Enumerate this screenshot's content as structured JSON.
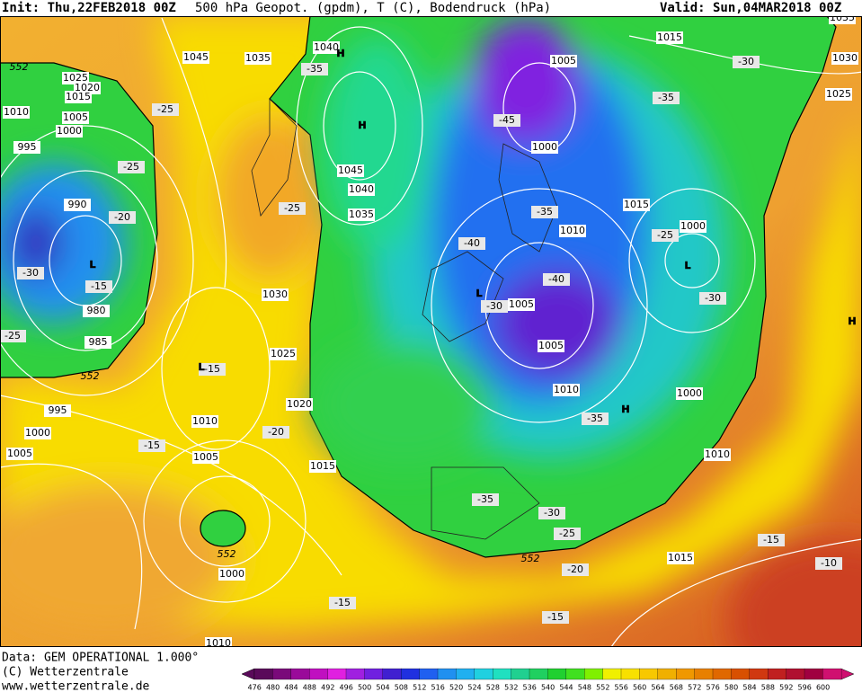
{
  "header": {
    "init": "Init: Thu,22FEB2018 00Z",
    "title": "500 hPa Geopot. (gpdm), T (C), Bodendruck (hPa)",
    "valid": "Valid: Sun,04MAR2018 00Z"
  },
  "map": {
    "isobar_labels": [
      "1040",
      "1045",
      "1035",
      "1025",
      "1020",
      "1015",
      "1010",
      "1005",
      "1000",
      "995",
      "990",
      "980",
      "985",
      "1045",
      "1040",
      "1035",
      "1030",
      "1025",
      "1020",
      "995",
      "1000",
      "1005",
      "1010",
      "1005",
      "1015",
      "1000",
      "1010",
      "1005",
      "1000",
      "1015",
      "1030",
      "1025",
      "1015",
      "1010",
      "1000",
      "1005",
      "1005",
      "1010",
      "1000",
      "1010",
      "1015",
      "1035"
    ],
    "temperature_labels": [
      "-35",
      "-25",
      "-25",
      "-20",
      "-30",
      "-15",
      "-25",
      "-15",
      "-25",
      "-45",
      "-35",
      "-40",
      "-40",
      "-30",
      "-35",
      "-25",
      "-30",
      "-35",
      "-30",
      "-20",
      "-15",
      "-35",
      "-30",
      "-25",
      "-20",
      "-15",
      "-15",
      "-15",
      "-10"
    ],
    "pressure_centers": [
      "H",
      "H",
      "L",
      "L",
      "L",
      "L",
      "H",
      "H"
    ],
    "height_labels": [
      "552",
      "552",
      "552",
      "552"
    ]
  },
  "footer": {
    "data": "Data: GEM OPERATIONAL 1.000°",
    "copyright": "(C) Wetterzentrale",
    "url": "www.wetterzentrale.de"
  },
  "colorbar": {
    "labels": [
      "476",
      "480",
      "484",
      "488",
      "492",
      "496",
      "500",
      "504",
      "508",
      "512",
      "516",
      "520",
      "524",
      "528",
      "532",
      "536",
      "540",
      "544",
      "548",
      "552",
      "556",
      "560",
      "564",
      "568",
      "572",
      "576",
      "580",
      "584",
      "588",
      "592",
      "596",
      "600"
    ],
    "colors": [
      "#5a0a5a",
      "#7a0a7a",
      "#9a0a9a",
      "#c010c0",
      "#e020e0",
      "#a020e0",
      "#7020e0",
      "#4020d0",
      "#2030e0",
      "#2060f0",
      "#2090f0",
      "#20b0f0",
      "#20d0e0",
      "#20e0c0",
      "#20d090",
      "#20d060",
      "#20d030",
      "#40e020",
      "#80f000",
      "#f0f000",
      "#f8e000",
      "#f8c800",
      "#f0b000",
      "#f09800",
      "#e88000",
      "#e06800",
      "#d85000",
      "#d03810",
      "#c02020",
      "#b01030",
      "#a00040",
      "#d01070"
    ]
  }
}
